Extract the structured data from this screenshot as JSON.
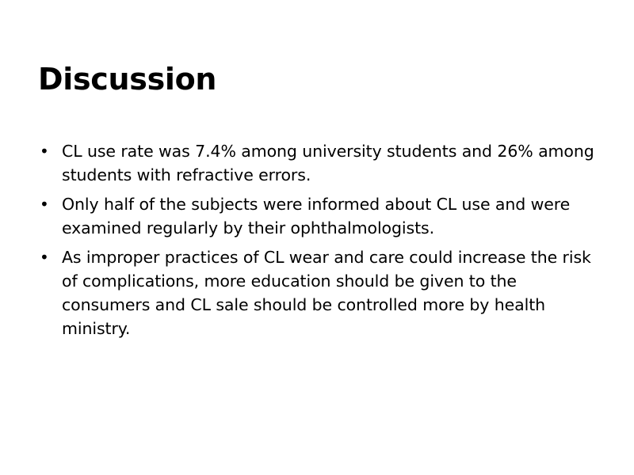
{
  "slide": {
    "title": "Discussion",
    "bullet_glyph": "•",
    "bullets": [
      "CL use rate was 7.4% among university students and 26% among students with refractive errors.",
      "Only half of the subjects were informed about CL use and were examined regularly by their ophthalmologists.",
      "As improper practices of CL wear and care could increase the risk of complications, more education should be given to the consumers and CL sale should be controlled more by health ministry."
    ]
  }
}
